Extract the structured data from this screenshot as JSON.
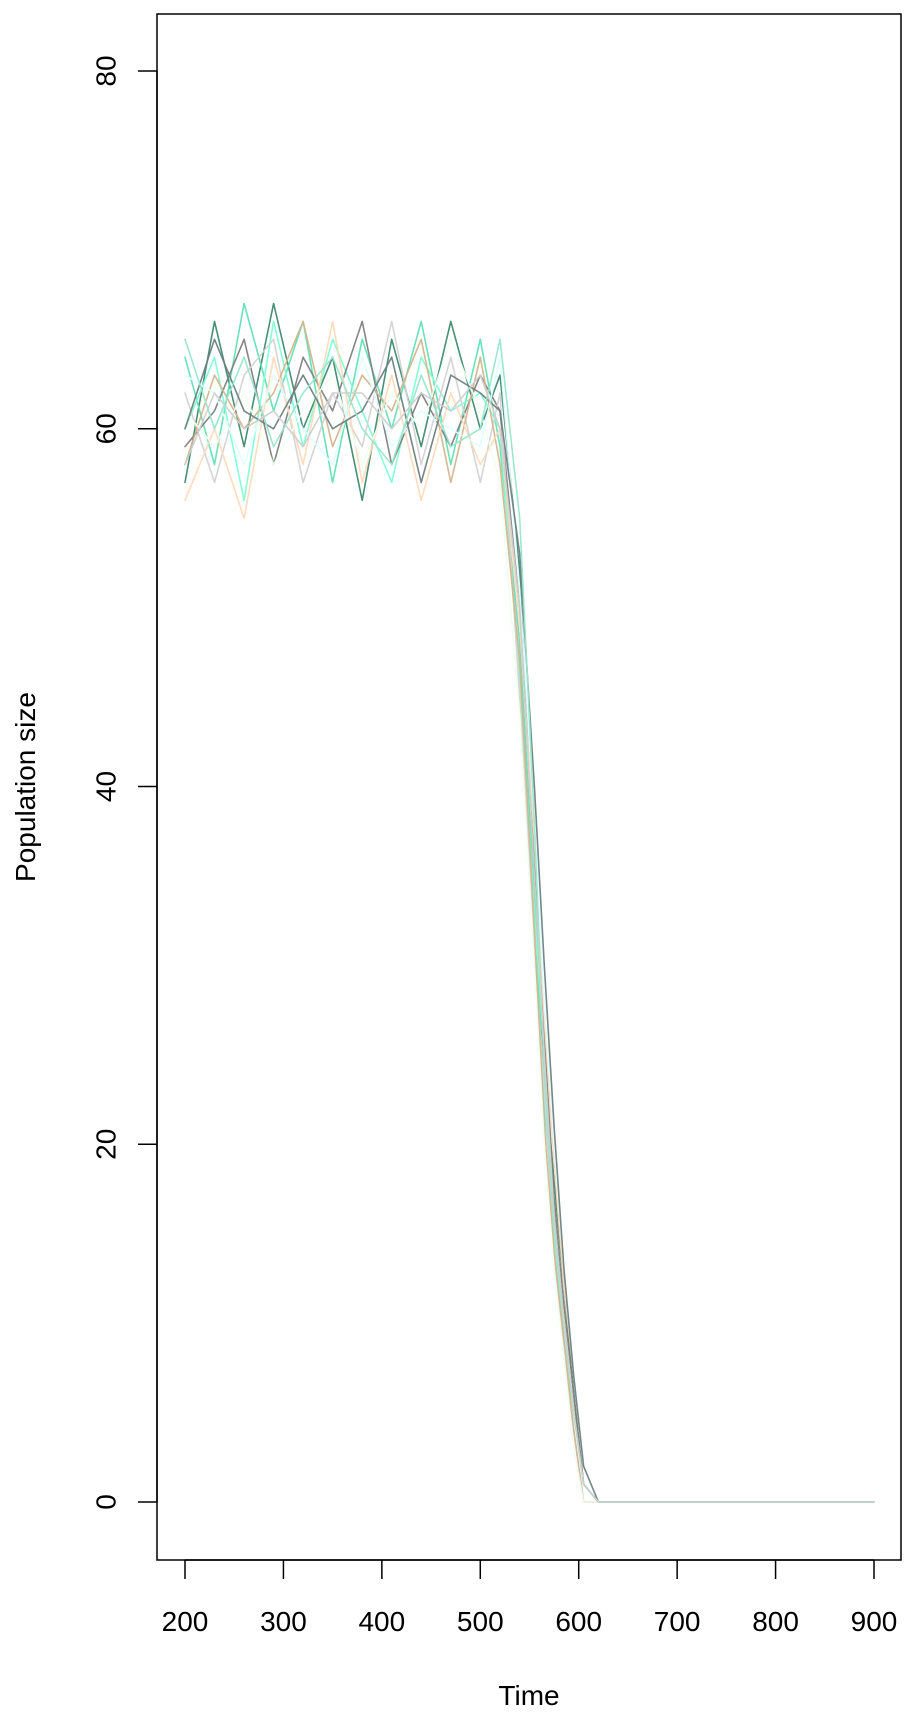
{
  "chart_data": {
    "type": "line",
    "title": "",
    "xlabel": "Time",
    "ylabel": "Population size",
    "xlim": [
      200,
      900
    ],
    "ylim": [
      0,
      80
    ],
    "x_ticks": [
      200,
      300,
      400,
      500,
      600,
      700,
      800,
      900
    ],
    "y_ticks": [
      0,
      20,
      40,
      60,
      80
    ],
    "grid": false,
    "legend": "none",
    "series_colors": [
      "#3d8a6e",
      "#5fe0b5",
      "#7fffd4",
      "#808080",
      "#d3d3d3",
      "#d2b48c",
      "#ffdab9",
      "#f0fff0",
      "#e0ffff",
      "#6e7f80",
      "#99e6cc",
      "#cfcfcf"
    ],
    "series": [
      {
        "x": [
          200,
          230,
          260,
          290,
          320,
          350,
          380,
          410,
          440,
          470,
          500,
          520,
          540,
          555,
          565,
          575,
          585,
          595,
          605,
          620,
          650,
          900
        ],
        "y": [
          57,
          66,
          59,
          67,
          60,
          64,
          56,
          65,
          59,
          66,
          60,
          63,
          52,
          35,
          24,
          18,
          12,
          6,
          1,
          0,
          0,
          0
        ]
      },
      {
        "x": [
          200,
          230,
          260,
          290,
          320,
          350,
          380,
          410,
          440,
          470,
          500,
          520,
          540,
          555,
          565,
          575,
          585,
          595,
          605,
          620,
          650,
          900
        ],
        "y": [
          64,
          58,
          67,
          61,
          66,
          57,
          65,
          60,
          66,
          58,
          65,
          59,
          48,
          34,
          22,
          16,
          10,
          5,
          1,
          0,
          0,
          0
        ]
      },
      {
        "x": [
          200,
          230,
          260,
          290,
          320,
          350,
          380,
          410,
          440,
          470,
          500,
          520,
          540,
          555,
          565,
          575,
          585,
          595,
          605,
          620,
          650,
          900
        ],
        "y": [
          60,
          64,
          56,
          66,
          59,
          65,
          61,
          57,
          64,
          61,
          62,
          60,
          46,
          33,
          25,
          15,
          9,
          5,
          1,
          0,
          0,
          0
        ]
      },
      {
        "x": [
          200,
          230,
          260,
          290,
          320,
          350,
          380,
          410,
          440,
          470,
          500,
          520,
          540,
          555,
          565,
          575,
          585,
          595,
          605,
          620,
          650,
          900
        ],
        "y": [
          59,
          61,
          65,
          58,
          64,
          61,
          66,
          58,
          62,
          59,
          63,
          61,
          50,
          36,
          26,
          17,
          11,
          6,
          1,
          0,
          0,
          0
        ]
      },
      {
        "x": [
          200,
          230,
          260,
          290,
          320,
          350,
          380,
          410,
          440,
          470,
          500,
          520,
          540,
          555,
          565,
          575,
          585,
          595,
          605,
          620,
          650,
          900
        ],
        "y": [
          62,
          57,
          63,
          65,
          57,
          62,
          59,
          66,
          58,
          64,
          57,
          62,
          45,
          31,
          23,
          14,
          8,
          4,
          0,
          0,
          0,
          0
        ]
      },
      {
        "x": [
          200,
          230,
          260,
          290,
          320,
          350,
          380,
          410,
          440,
          470,
          500,
          520,
          540,
          555,
          565,
          575,
          585,
          595,
          605,
          620,
          650,
          900
        ],
        "y": [
          58,
          63,
          60,
          62,
          66,
          59,
          63,
          61,
          65,
          57,
          64,
          58,
          47,
          32,
          21,
          14,
          9,
          4,
          0,
          0,
          0,
          0
        ]
      },
      {
        "x": [
          200,
          230,
          260,
          290,
          320,
          350,
          380,
          410,
          440,
          470,
          500,
          520,
          540,
          555,
          565,
          575,
          585,
          595,
          605,
          620,
          650,
          900
        ],
        "y": [
          56,
          60,
          55,
          64,
          58,
          66,
          57,
          63,
          56,
          62,
          58,
          60,
          49,
          37,
          27,
          19,
          12,
          7,
          2,
          0,
          0,
          0
        ]
      },
      {
        "x": [
          200,
          230,
          260,
          290,
          320,
          350,
          380,
          410,
          440,
          470,
          500,
          520,
          540,
          555,
          565,
          575,
          585,
          595,
          605,
          620,
          650,
          900
        ],
        "y": [
          61,
          59,
          62,
          58,
          61,
          63,
          58,
          62,
          60,
          65,
          61,
          57,
          44,
          30,
          20,
          13,
          8,
          3,
          0,
          0,
          0,
          0
        ]
      },
      {
        "x": [
          200,
          230,
          260,
          290,
          320,
          350,
          380,
          410,
          440,
          470,
          500,
          520,
          540,
          555,
          565,
          575,
          585,
          595,
          605,
          620,
          650,
          900
        ],
        "y": [
          63,
          62,
          58,
          63,
          60,
          58,
          64,
          59,
          61,
          60,
          59,
          64,
          51,
          38,
          28,
          20,
          13,
          7,
          2,
          0,
          0,
          0
        ]
      },
      {
        "x": [
          200,
          230,
          260,
          290,
          320,
          350,
          380,
          410,
          440,
          470,
          500,
          520,
          540,
          555,
          565,
          575,
          585,
          595,
          605,
          620,
          650,
          900
        ],
        "y": [
          60,
          65,
          61,
          60,
          63,
          60,
          61,
          64,
          57,
          63,
          62,
          61,
          53,
          40,
          30,
          21,
          13,
          7,
          2,
          0,
          0,
          0
        ]
      },
      {
        "x": [
          200,
          230,
          260,
          290,
          320,
          350,
          380,
          410,
          440,
          470,
          500,
          520,
          540,
          555,
          565,
          575,
          585,
          595,
          605,
          620,
          650,
          900
        ],
        "y": [
          65,
          60,
          64,
          59,
          62,
          64,
          60,
          58,
          63,
          59,
          60,
          65,
          55,
          38,
          24,
          15,
          10,
          5,
          1,
          0,
          0,
          0
        ]
      },
      {
        "x": [
          200,
          230,
          260,
          290,
          320,
          350,
          380,
          410,
          440,
          470,
          500,
          520,
          540,
          555,
          565,
          575,
          585,
          595,
          605,
          620,
          650,
          900
        ],
        "y": [
          58,
          62,
          60,
          61,
          59,
          62,
          62,
          60,
          62,
          61,
          63,
          60,
          50,
          35,
          25,
          16,
          10,
          5,
          1,
          0,
          0,
          0
        ]
      }
    ]
  }
}
